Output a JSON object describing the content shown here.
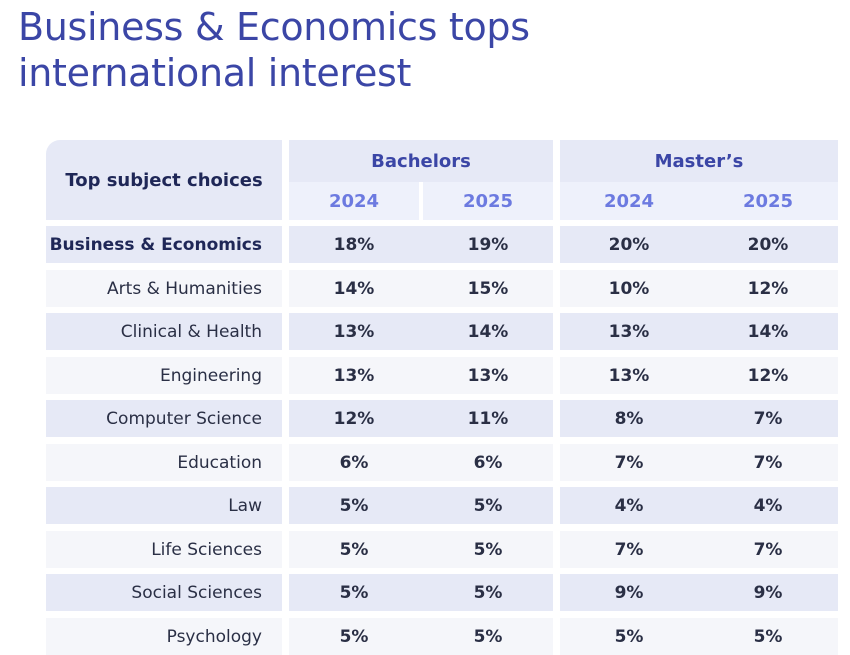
{
  "title": "Business & Economics tops international interest",
  "table": {
    "corner_label": "Top subject choices",
    "groups": [
      {
        "label": "Bachelors",
        "years": [
          "2024",
          "2025"
        ]
      },
      {
        "label": "Master’s",
        "years": [
          "2024",
          "2025"
        ]
      }
    ]
  },
  "chart_data": {
    "type": "table",
    "title": "Business & Economics tops international interest",
    "columns": [
      "Bachelors 2024",
      "Bachelors 2025",
      "Master’s 2024",
      "Master’s 2025"
    ],
    "rows": [
      {
        "subject": "Business & Economics",
        "values": [
          "18%",
          "19%",
          "20%",
          "20%"
        ]
      },
      {
        "subject": "Arts & Humanities",
        "values": [
          "14%",
          "15%",
          "10%",
          "12%"
        ]
      },
      {
        "subject": "Clinical & Health",
        "values": [
          "13%",
          "14%",
          "13%",
          "14%"
        ]
      },
      {
        "subject": "Engineering",
        "values": [
          "13%",
          "13%",
          "13%",
          "12%"
        ]
      },
      {
        "subject": "Computer Science",
        "values": [
          "12%",
          "11%",
          "8%",
          "7%"
        ]
      },
      {
        "subject": "Education",
        "values": [
          "6%",
          "6%",
          "7%",
          "7%"
        ]
      },
      {
        "subject": "Law",
        "values": [
          "5%",
          "5%",
          "4%",
          "4%"
        ]
      },
      {
        "subject": "Life Sciences",
        "values": [
          "5%",
          "5%",
          "7%",
          "7%"
        ]
      },
      {
        "subject": "Social Sciences",
        "values": [
          "5%",
          "5%",
          "9%",
          "9%"
        ]
      },
      {
        "subject": "Psychology",
        "values": [
          "5%",
          "5%",
          "5%",
          "5%"
        ]
      }
    ]
  },
  "colors": {
    "title": "#3b46a6",
    "header_fill": "#e6e9f6",
    "subheader_fill": "#eef1fb",
    "row_fill_a": "#e6e9f6",
    "row_fill_b": "#f5f6fa",
    "year_text": "#6c7ae0"
  }
}
